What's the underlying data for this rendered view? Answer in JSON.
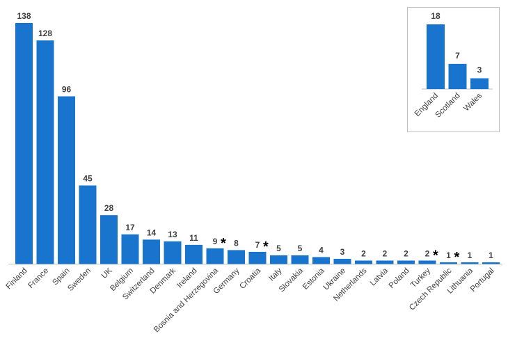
{
  "chart_data": [
    {
      "type": "bar",
      "categories": [
        "Finland",
        "France",
        "Spain",
        "Sweden",
        "UK",
        "Belgium",
        "Switzerland",
        "Denmark",
        "Ireland",
        "Bosnia and Herzegovina",
        "Germany",
        "Croatia",
        "Italy",
        "Slovakia",
        "Estonia",
        "Ukraine",
        "Netherlands",
        "Latvia",
        "Poland",
        "Turkey",
        "Czech Republic",
        "Lithuania",
        "Portugal"
      ],
      "values": [
        138,
        128,
        96,
        45,
        28,
        17,
        14,
        13,
        11,
        9,
        8,
        7,
        5,
        5,
        4,
        3,
        2,
        2,
        2,
        2,
        1,
        1,
        1
      ],
      "value_labels": [
        "138",
        "128",
        "96",
        "45",
        "28",
        "17",
        "14",
        "13",
        "11",
        "9",
        "8",
        "7",
        "5",
        "5",
        "4",
        "3",
        "2",
        "2",
        "2",
        "2",
        "1",
        "1",
        "1"
      ],
      "asterisk": "*",
      "asterisk_categories": [
        "Bosnia and Herzegovina",
        "Croatia",
        "Turkey",
        "Czech Republic"
      ],
      "ylim": [
        0,
        140
      ],
      "grid": false,
      "bar_color": "#1874cd"
    },
    {
      "type": "bar",
      "categories": [
        "England",
        "Scotland",
        "Wales"
      ],
      "values": [
        18,
        7,
        3
      ],
      "value_labels": [
        "18",
        "7",
        "3"
      ],
      "ylim": [
        0,
        20
      ],
      "grid": false,
      "bar_color": "#1874cd",
      "placement": "inset top-right"
    }
  ],
  "colors": {
    "bar": "#1874cd",
    "axis": "#bfbfbf",
    "text": "#404040",
    "inset_border": "#bfbfbf"
  }
}
